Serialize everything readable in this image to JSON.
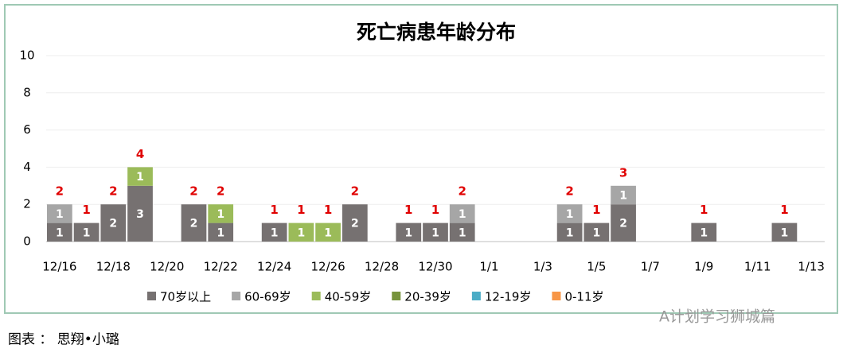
{
  "chart_data": {
    "type": "bar",
    "stacked": true,
    "title": "死亡病患年龄分布",
    "categories": [
      "12/16",
      null,
      "12/18",
      null,
      "12/20",
      null,
      "12/22",
      null,
      "12/24",
      null,
      "12/26",
      null,
      "12/28",
      null,
      "12/30",
      null,
      "1/1",
      null,
      "1/3",
      null,
      "1/5",
      null,
      "1/7",
      null,
      "1/9",
      null,
      "1/11",
      null,
      "1/13"
    ],
    "series": [
      {
        "name": "70岁以上",
        "color": "#767171",
        "values": [
          1,
          1,
          2,
          3,
          null,
          2,
          1,
          null,
          1,
          null,
          null,
          2,
          null,
          1,
          1,
          1,
          null,
          null,
          null,
          1,
          1,
          2,
          null,
          null,
          1,
          null,
          null,
          1,
          null
        ]
      },
      {
        "name": "60-69岁",
        "color": "#a6a6a6",
        "values": [
          1,
          null,
          null,
          null,
          null,
          null,
          null,
          null,
          null,
          null,
          null,
          null,
          null,
          null,
          null,
          1,
          null,
          null,
          null,
          1,
          null,
          1,
          null,
          null,
          null,
          null,
          null,
          null,
          null
        ]
      },
      {
        "name": "40-59岁",
        "color": "#9bbb59",
        "values": [
          null,
          null,
          null,
          1,
          null,
          null,
          1,
          null,
          null,
          1,
          1,
          null,
          null,
          null,
          null,
          null,
          null,
          null,
          null,
          null,
          null,
          null,
          null,
          null,
          null,
          null,
          null,
          null,
          null
        ]
      },
      {
        "name": "20-39岁",
        "color": "#77933c",
        "values": [
          null,
          null,
          null,
          null,
          null,
          null,
          null,
          null,
          null,
          null,
          null,
          null,
          null,
          null,
          null,
          null,
          null,
          null,
          null,
          null,
          null,
          null,
          null,
          null,
          null,
          null,
          null,
          null,
          null
        ]
      },
      {
        "name": "12-19岁",
        "color": "#4bacc6",
        "values": [
          null,
          null,
          null,
          null,
          null,
          null,
          null,
          null,
          null,
          null,
          null,
          null,
          null,
          null,
          null,
          null,
          null,
          null,
          null,
          null,
          null,
          null,
          null,
          null,
          null,
          null,
          null,
          null,
          null
        ]
      },
      {
        "name": "0-11岁",
        "color": "#f79646",
        "values": [
          null,
          null,
          null,
          null,
          null,
          null,
          null,
          null,
          null,
          null,
          null,
          null,
          null,
          null,
          null,
          null,
          null,
          null,
          null,
          null,
          null,
          null,
          null,
          null,
          null,
          null,
          null,
          null,
          null
        ]
      }
    ],
    "totals": [
      2,
      1,
      2,
      4,
      null,
      2,
      2,
      null,
      1,
      1,
      1,
      2,
      null,
      1,
      1,
      2,
      null,
      null,
      null,
      2,
      1,
      3,
      null,
      null,
      1,
      null,
      null,
      1,
      null
    ],
    "totals_color": "#e00000",
    "ylim": [
      0,
      10
    ],
    "yticks": [
      0,
      2,
      4,
      6,
      8,
      10
    ],
    "grid": true,
    "legend": "bottom"
  },
  "caption": "图表 ： 思翔•小璐",
  "watermark": "A计划学习狮城篇"
}
